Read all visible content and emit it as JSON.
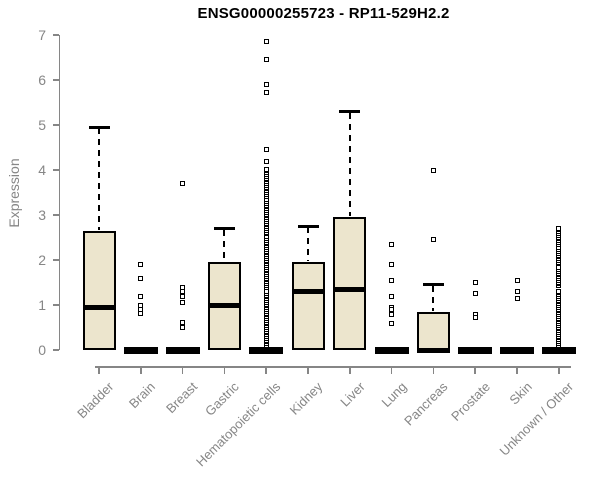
{
  "style": {
    "background": "#FFFFFF",
    "box_fill": "#ECE5CD",
    "box_border": "#000000",
    "axis_color": "#868686",
    "title_color": "#000000"
  },
  "chart_data": {
    "type": "boxplot",
    "title": "ENSG00000255723 - RP11-529H2.2",
    "ylabel": "Expression",
    "xlabel": "",
    "ylim": [
      0,
      7
    ],
    "yticks": [
      0,
      1,
      2,
      3,
      4,
      5,
      6,
      7
    ],
    "grid": false,
    "legend": false,
    "categories": [
      {
        "label": "Bladder",
        "min": 0,
        "q1": 0,
        "median": 0.95,
        "q3": 2.65,
        "max": 4.95,
        "outliers": [],
        "outlier_ranges": []
      },
      {
        "label": "Brain",
        "min": 0,
        "q1": 0,
        "median": 0,
        "q3": 0,
        "max": 0,
        "outliers": [
          1.9,
          1.6,
          1.2,
          1.0,
          0.9,
          0.82
        ],
        "outlier_ranges": []
      },
      {
        "label": "Breast",
        "min": 0,
        "q1": 0,
        "median": 0,
        "q3": 0,
        "max": 0,
        "outliers": [
          3.7,
          1.4,
          1.3,
          1.2,
          1.05,
          0.62,
          0.5
        ],
        "outlier_ranges": []
      },
      {
        "label": "Gastric",
        "min": 0,
        "q1": 0,
        "median": 1.0,
        "q3": 1.95,
        "max": 2.7,
        "outliers": [],
        "outlier_ranges": []
      },
      {
        "label": "Hematopoietic cells",
        "min": 0,
        "q1": 0,
        "median": 0,
        "q3": 0,
        "max": 0,
        "outliers": [
          6.85,
          6.45,
          5.9,
          5.72,
          4.45,
          4.2
        ],
        "outlier_ranges": [
          {
            "from": 0.1,
            "to": 1.32,
            "step": 0.04
          },
          {
            "from": 1.4,
            "to": 2.52,
            "step": 0.04
          },
          {
            "from": 2.58,
            "to": 3.36,
            "step": 0.04
          },
          {
            "from": 3.42,
            "to": 4.02,
            "step": 0.04
          }
        ]
      },
      {
        "label": "Kidney",
        "min": 0,
        "q1": 0,
        "median": 1.3,
        "q3": 1.95,
        "max": 2.75,
        "outliers": [],
        "outlier_ranges": []
      },
      {
        "label": "Liver",
        "min": 0,
        "q1": 0,
        "median": 1.35,
        "q3": 2.95,
        "max": 5.3,
        "outliers": [],
        "outlier_ranges": []
      },
      {
        "label": "Lung",
        "min": 0,
        "q1": 0,
        "median": 0,
        "q3": 0,
        "max": 0,
        "outliers": [
          2.35,
          1.9,
          1.55,
          1.2,
          0.95,
          0.9,
          0.8,
          0.6
        ],
        "outlier_ranges": []
      },
      {
        "label": "Pancreas",
        "min": 0,
        "q1": 0,
        "median": 0,
        "q3": 0.85,
        "max": 1.45,
        "outliers": [
          4.0,
          2.45
        ],
        "outlier_ranges": []
      },
      {
        "label": "Prostate",
        "min": 0,
        "q1": 0,
        "median": 0,
        "q3": 0,
        "max": 0,
        "outliers": [
          1.5,
          1.25,
          0.8,
          0.72
        ],
        "outlier_ranges": []
      },
      {
        "label": "Skin",
        "min": 0,
        "q1": 0,
        "median": 0,
        "q3": 0,
        "max": 0,
        "outliers": [
          1.55,
          1.3,
          1.15
        ],
        "outlier_ranges": []
      },
      {
        "label": "Unknown / Other",
        "min": 0,
        "q1": 0,
        "median": 0,
        "q3": 0,
        "max": 0,
        "outliers": [],
        "outlier_ranges": [
          {
            "from": 0.07,
            "to": 1.33,
            "step": 0.04
          },
          {
            "from": 1.43,
            "to": 1.85,
            "step": 0.04
          },
          {
            "from": 1.95,
            "to": 2.27,
            "step": 0.04
          },
          {
            "from": 2.35,
            "to": 2.72,
            "step": 0.04
          }
        ]
      }
    ]
  }
}
